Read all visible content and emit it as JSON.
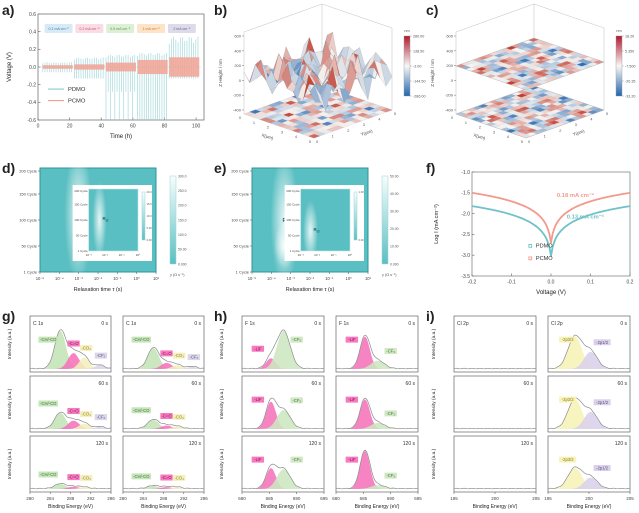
{
  "chart_data": [
    {
      "id": "a",
      "panel_label": "a)",
      "type": "line",
      "xlabel": "Time (h)",
      "ylabel": "Voltage (V)",
      "xlim": [
        0,
        105
      ],
      "ylim": [
        -0.6,
        0.6
      ],
      "xticks": [
        0,
        20,
        40,
        60,
        80,
        100
      ],
      "yticks": [
        0.6,
        0.4,
        0.2,
        0.0,
        -0.2,
        -0.4,
        -0.6
      ],
      "legend": [
        {
          "name": "PDMO",
          "color": "#8fd0d4"
        },
        {
          "name": "PCMO",
          "color": "#f2a294"
        }
      ],
      "rate_labels": [
        {
          "text": "0.1 mA cm⁻²",
          "bg": "#d7eaf6",
          "fg": "#3a7ca5",
          "t": 13
        },
        {
          "text": "0.2 mA cm⁻²",
          "bg": "#fadce4",
          "fg": "#c2527a",
          "t": 32.5
        },
        {
          "text": "0.5 mA cm⁻²",
          "bg": "#ddefd5",
          "fg": "#5a9648",
          "t": 52
        },
        {
          "text": "1 mA cm⁻²",
          "bg": "#fde3c8",
          "fg": "#c97a2b",
          "t": 71.5
        },
        {
          "text": "2 mA cm⁻²",
          "bg": "#dddbe9",
          "fg": "#6a5f8f",
          "t": 91
        }
      ],
      "segments": [
        {
          "t0": 3,
          "t1": 22,
          "pdmo_up": 0.05,
          "pdmo_dn": [
            -0.06
          ],
          "pcmo": 0.02
        },
        {
          "t0": 23,
          "t1": 42,
          "pdmo_up": 0.1,
          "pdmo_dn": [
            -0.13
          ],
          "pcmo": 0.03
        },
        {
          "t0": 43,
          "t1": 62,
          "pdmo_up": 0.13,
          "pdmo_dn": [
            -0.62,
            -0.28
          ],
          "pcmo": 0.05
        },
        {
          "t0": 63,
          "t1": 82,
          "pdmo_up": 0.15,
          "pdmo_dn": [
            -0.62
          ],
          "pcmo": 0.08
        },
        {
          "t0": 83,
          "t1": 102,
          "pdmo_up": 0.32,
          "pdmo_dn": [
            -0.13
          ],
          "pcmo": 0.11
        }
      ]
    },
    {
      "id": "b",
      "panel_label": "b)",
      "type": "surface3d",
      "zlabel": "Z Height / nm",
      "xlabel": "X(μm)",
      "ylabel": "Y(μm)",
      "zticks": [
        600,
        400,
        200,
        0,
        -200,
        -400
      ],
      "xyticks": [
        0,
        1,
        2,
        3,
        4,
        5
      ],
      "colorbar": {
        "title": "nm",
        "ticks": [
          "280.00",
          "138.50",
          "-3.00",
          "-144.50",
          "-286.00"
        ]
      },
      "seed": 3
    },
    {
      "id": "c",
      "panel_label": "c)",
      "type": "stacked-maps3d",
      "zlabel": "Z Height / nm",
      "xlabel": "X(μm)",
      "ylabel": "Y(μm)",
      "zticks": [
        600,
        400,
        200,
        0,
        -200,
        -400
      ],
      "xyticks": [
        0,
        1,
        2,
        3,
        4,
        5
      ],
      "colorbar": {
        "title": "nm",
        "ticks": [
          "18.20",
          "5.350",
          "-7.500",
          "-20.35",
          "-33.20"
        ]
      },
      "seed": 7
    },
    {
      "id": "d",
      "panel_label": "d)",
      "type": "drt-heatmap",
      "xlabel": "Relaxation time τ (s)",
      "yticks": [
        "1 Cycle",
        "50 Cycle",
        "100 Cycle",
        "150 Cycle",
        "200 Cycle"
      ],
      "xtick_exponents": [
        -5,
        -4,
        -3,
        -2,
        -1,
        0,
        1
      ],
      "band": {
        "x": 0.33,
        "y": 0.45,
        "rx": 0.12,
        "ry": 0.65
      },
      "band_label_main": "R",
      "band_label_sub": "SEI",
      "colorbar": {
        "ticks": [
          "300.0",
          "250.0",
          "200.0",
          "150.0",
          "100.0",
          "50.00",
          "0.000"
        ],
        "title": "γ (Ω s⁻¹)"
      },
      "inset": {
        "yticks": [
          "1 Cycle",
          "50 Cycle",
          "100 Cycle",
          "150 Cycle",
          "200 Cycle"
        ],
        "xtick_exponents": [
          -3,
          -2,
          -1,
          0
        ],
        "band": {
          "x": 0.22,
          "y": 0.5,
          "rx": 0.14,
          "ry": 0.62
        },
        "band_label_main": "R",
        "band_label_sub": "ct",
        "colorbar": {
          "ticks": [
            "20.0",
            "15.0",
            "10.0",
            "5.00",
            "0.00"
          ]
        }
      },
      "base_color": "#5abfc2"
    },
    {
      "id": "e",
      "panel_label": "e)",
      "type": "drt-heatmap",
      "xlabel": "Relaxation time τ (s)",
      "yticks": [
        "1 Cycle",
        "50 Cycle",
        "100 Cycle",
        "150 Cycle",
        "200 Cycle"
      ],
      "xtick_exponents": [
        -5,
        -4,
        -3,
        -2,
        -1,
        0,
        1
      ],
      "band": {
        "x": 0.28,
        "y": 0.5,
        "rx": 0.12,
        "ry": 0.65
      },
      "hotspot": {
        "x": 0.28,
        "y": 0.75
      },
      "band_label_main": "R",
      "band_label_sub": "SEI",
      "colorbar": {
        "ticks": [
          "50.00",
          "40.00",
          "30.00",
          "20.00",
          "10.00",
          "0.000"
        ],
        "title": "γ (Ω s⁻¹)"
      },
      "inset": {
        "yticks": [
          "1 Cycle",
          "50 Cycle",
          "100 Cycle",
          "150 Cycle",
          "200 Cycle"
        ],
        "xtick_exponents": [
          -3,
          -2,
          -1,
          0
        ],
        "band": {
          "x": 0.2,
          "y": 0.68,
          "rx": 0.15,
          "ry": 0.5
        },
        "band_label_main": "R",
        "band_label_sub": "ct",
        "colorbar": {
          "ticks": [
            "1.00",
            "0.00"
          ]
        }
      },
      "base_color": "#5abfc2"
    },
    {
      "id": "f",
      "panel_label": "f)",
      "type": "tafel",
      "xlabel": "Voltage (V)",
      "ylabel": "Log I (mA cm⁻²)",
      "xlim": [
        -0.2,
        0.2
      ],
      "ylim": [
        -3.5,
        -1.0
      ],
      "xticks": [
        -0.2,
        -0.1,
        0.0,
        0.1,
        0.2
      ],
      "yticks": [
        -1.0,
        -1.5,
        -2.0,
        -2.5,
        -3.0,
        -3.5
      ],
      "series": [
        {
          "name": "PCMO",
          "color": "#f29a8c",
          "plateau": -1.5,
          "cusp": -2.7,
          "annotation": "0.18 mA cm⁻²",
          "ann_x": 0.015,
          "ann_y": -1.6
        },
        {
          "name": "PDMO",
          "color": "#6fc2c5",
          "plateau": -1.82,
          "cusp": -3.02,
          "annotation": "0.13 mA cm⁻²",
          "ann_x": 0.04,
          "ann_y": -2.12
        }
      ],
      "legend": [
        {
          "name": "PDMO",
          "color": "#6fc2c5"
        },
        {
          "name": "PCMO",
          "color": "#f29a8c"
        }
      ]
    },
    {
      "id": "g",
      "panel_label": "g)",
      "type": "xps",
      "core_level": "C 1s",
      "xlabel": "Binding Energy (eV)",
      "ylabel": "Intensity (a.u.)",
      "xlim": [
        280,
        296
      ],
      "xticks": [
        280,
        284,
        288,
        292,
        296
      ],
      "times": [
        "0 s",
        "60 s",
        "120 s"
      ],
      "species": [
        {
          "label": "-CH/-CO",
          "color": "#c4e4b6",
          "text": "#41753a",
          "center": 286.0,
          "sigma": 1.1,
          "ldx": -2.4
        },
        {
          "label": "-C=O",
          "color": "#f573b9",
          "text": "#8c0e5e",
          "center": 288.6,
          "sigma": 1.1,
          "ldx": 0
        },
        {
          "label": "-CO₃",
          "color": "#f4efbc",
          "text": "#8a7d1d",
          "center": 290.7,
          "sigma": 1.0,
          "ldx": 0.4
        },
        {
          "label": "-CF₂",
          "color": "#d9d5e7",
          "text": "#5a4f85",
          "center": 293.7,
          "sigma": 0.9,
          "ldx": 0.3
        }
      ],
      "columns": [
        {
          "rows": [
            [
              1.0,
              0.42,
              0.3,
              0.1
            ],
            [
              0.42,
              0.22,
              0.14,
              0.06
            ],
            [
              0.13,
              0.06,
              0.04,
              0.0
            ]
          ]
        },
        {
          "rows": [
            [
              0.55,
              0.16,
              0.1,
              0.06
            ],
            [
              0.24,
              0.09,
              0.06,
              0.0
            ],
            [
              0.08,
              0.05,
              0.04,
              0.0
            ]
          ]
        }
      ]
    },
    {
      "id": "h",
      "panel_label": "h)",
      "type": "xps",
      "core_level": "F 1s",
      "xlabel": "Binding Energy (eV)",
      "ylabel": "Intensity (a.u.)",
      "xlim": [
        680,
        695
      ],
      "xticks": [
        680,
        685,
        690,
        695
      ],
      "times": [
        "0 s",
        "60 s",
        "120 s"
      ],
      "species": [
        {
          "label": "-LiF",
          "color": "#f573b9",
          "text": "#8c0e5e",
          "center": 685.3,
          "sigma": 0.9,
          "ldx": -2.4
        },
        {
          "label": "-CF₃",
          "color": "#cde7c0",
          "text": "#41753a",
          "center": 687.6,
          "sigma": 1.2,
          "ldx": 2.4
        }
      ],
      "columns": [
        {
          "rows": [
            [
              0.28,
              1.0
            ],
            [
              0.72,
              0.5
            ],
            [
              0.55,
              0.52
            ]
          ]
        },
        {
          "rows": [
            [
              0.85,
              0.22
            ],
            [
              0.78,
              0.16
            ],
            [
              1.0,
              0.1
            ]
          ]
        }
      ]
    },
    {
      "id": "i",
      "panel_label": "i)",
      "type": "xps",
      "core_level": "Cl 2p",
      "xlabel": "Binding Energy (eV)",
      "ylabel": "Intensity (a.u.)",
      "xlim": [
        195,
        205
      ],
      "xticks": [
        195,
        200,
        205
      ],
      "times": [
        "0 s",
        "60 s",
        "120 s"
      ],
      "species": [
        {
          "label": "-2p3/2",
          "color": "#f7f2b7",
          "text": "#8a7d1d",
          "center": 198.3,
          "sigma": 0.85,
          "ldx": -0.9
        },
        {
          "label": "-2p1/2",
          "color": "#d9d0e9",
          "text": "#5a4f85",
          "center": 200.2,
          "sigma": 0.8,
          "ldx": 1.4
        }
      ],
      "columns": [
        {
          "rows": [
            [
              0,
              0
            ],
            [
              0,
              0
            ],
            [
              0,
              0
            ]
          ]
        },
        {
          "rows": [
            [
              0.85,
              0.45
            ],
            [
              0.78,
              0.45
            ],
            [
              0.55,
              0.3
            ]
          ]
        }
      ]
    }
  ]
}
